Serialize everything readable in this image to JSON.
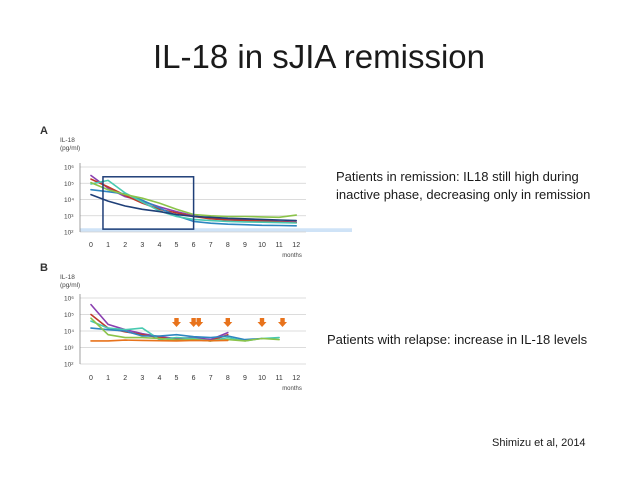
{
  "slide": {
    "title": "IL-18 in sJIA remission",
    "note_remission_line1": "Patients in remission: IL18 still high during",
    "note_remission_line2": "inactive phase, decreasing only in remission",
    "note_relapse": "Patients with relapse: increase in IL-18 levels",
    "citation": "Shimizu et al, 2014"
  },
  "chart_data": [
    {
      "type": "line",
      "panel_label": "A",
      "ylabel_line1": "IL-18",
      "ylabel_line2": "(pg/ml)",
      "xlabel": "months",
      "yscale": "log",
      "ylim": [
        100,
        1000000
      ],
      "yticks": [
        {
          "value": 100,
          "label": "10²"
        },
        {
          "value": 1000,
          "label": "10³"
        },
        {
          "value": 10000,
          "label": "10⁴"
        },
        {
          "value": 100000,
          "label": "10⁵"
        },
        {
          "value": 1000000,
          "label": "10⁶"
        }
      ],
      "x": [
        0,
        1,
        2,
        3,
        4,
        5,
        6,
        7,
        8,
        9,
        10,
        11,
        12
      ],
      "xtick_labels": [
        "0",
        "1",
        "2",
        "3",
        "4",
        "5",
        "6",
        "7",
        "8",
        "9",
        "10",
        "11",
        "12"
      ],
      "highlight_box": {
        "x_range": [
          0.7,
          6
        ],
        "y_range": [
          150,
          250000
        ],
        "color": "#1f3f78"
      },
      "normal_band": {
        "y_range": [
          100,
          170
        ],
        "color": "#cfe3f7"
      },
      "series": [
        {
          "color": "#8a3fb0",
          "values": [
            300000,
            50000,
            15000,
            8000,
            3500,
            1800,
            1000,
            700,
            600,
            550,
            500,
            450,
            400
          ]
        },
        {
          "color": "#c0392b",
          "values": [
            180000,
            60000,
            18000,
            6000,
            2500,
            1500,
            900,
            650,
            550,
            500,
            480,
            420,
            380
          ]
        },
        {
          "color": "#2e86c1",
          "values": [
            40000,
            30000,
            22000,
            9000,
            3000,
            1000,
            450,
            350,
            300,
            280,
            260,
            250,
            240
          ]
        },
        {
          "color": "#48c9b0",
          "values": [
            90000,
            150000,
            25000,
            7000,
            2000,
            900,
            600,
            500,
            450,
            420,
            400,
            380,
            360
          ]
        },
        {
          "color": "#8bc34a",
          "values": [
            110000,
            40000,
            20000,
            12000,
            6000,
            2500,
            1200,
            1000,
            900,
            900,
            850,
            800,
            1100
          ]
        },
        {
          "color": "#1f3f78",
          "values": [
            20000,
            8000,
            4000,
            2500,
            1800,
            1200,
            900,
            800,
            700,
            650,
            600,
            550,
            500
          ]
        }
      ]
    },
    {
      "type": "line",
      "panel_label": "B",
      "ylabel_line1": "IL-18",
      "ylabel_line2": "(pg/ml)",
      "xlabel": "months",
      "yscale": "log",
      "ylim": [
        100,
        1000000
      ],
      "yticks": [
        {
          "value": 100,
          "label": "10²"
        },
        {
          "value": 1000,
          "label": "10³"
        },
        {
          "value": 10000,
          "label": "10⁴"
        },
        {
          "value": 100000,
          "label": "10⁵"
        },
        {
          "value": 1000000,
          "label": "10⁶"
        }
      ],
      "x": [
        0,
        1,
        2,
        3,
        4,
        5,
        6,
        7,
        8,
        9,
        10,
        11,
        12
      ],
      "xtick_labels": [
        "0",
        "1",
        "2",
        "3",
        "4",
        "5",
        "6",
        "7",
        "8",
        "9",
        "10",
        "11",
        "12"
      ],
      "relapse_arrows_x": [
        5,
        6,
        6.3,
        8,
        10,
        11.2
      ],
      "arrow_color": "#e8731c",
      "series": [
        {
          "color": "#8a3fb0",
          "values": [
            400000,
            25000,
            12000,
            7000,
            4500,
            3500,
            4000,
            3000,
            8000,
            null,
            null,
            null,
            null
          ]
        },
        {
          "color": "#c0392b",
          "values": [
            100000,
            15000,
            9000,
            6000,
            4000,
            3000,
            3000,
            2500,
            6000,
            null,
            null,
            null,
            null
          ]
        },
        {
          "color": "#48c9b0",
          "values": [
            40000,
            15000,
            12000,
            15000,
            3000,
            4000,
            3500,
            2500,
            4000,
            2500,
            3500,
            4000,
            null
          ]
        },
        {
          "color": "#2e86c1",
          "values": [
            15000,
            12000,
            10000,
            5000,
            5000,
            6000,
            4500,
            4000,
            5000,
            3000,
            3500,
            null,
            null
          ]
        },
        {
          "color": "#8bc34a",
          "values": [
            60000,
            6000,
            4000,
            4000,
            3500,
            2800,
            3000,
            2500,
            3000,
            2500,
            3500,
            3000,
            null
          ]
        },
        {
          "color": "#e8731c",
          "values": [
            2500,
            2500,
            2800,
            2700,
            2600,
            2500,
            2700,
            2600,
            2700,
            null,
            null,
            null,
            null
          ]
        }
      ]
    }
  ]
}
